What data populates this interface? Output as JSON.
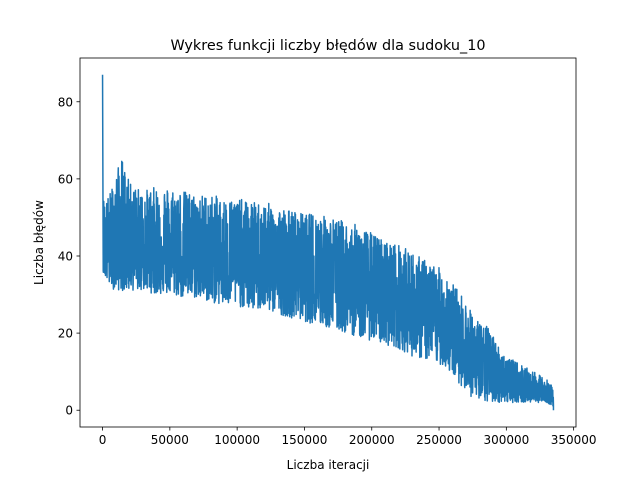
{
  "chart_data": {
    "type": "line",
    "title": "Wykres funkcji liczby błędów dla sudoku_10",
    "xlabel": "Liczba iteracji",
    "ylabel": "Liczba błędów",
    "xlim": [
      -16750,
      351750
    ],
    "ylim": [
      -4.35,
      91.35
    ],
    "xticks": [
      0,
      50000,
      100000,
      150000,
      200000,
      250000,
      300000,
      350000
    ],
    "xtick_labels": [
      "0",
      "50000",
      "100000",
      "150000",
      "200000",
      "250000",
      "300000",
      "350000"
    ],
    "yticks": [
      0,
      20,
      40,
      60,
      80
    ],
    "ytick_labels": [
      "0",
      "20",
      "40",
      "60",
      "80"
    ],
    "grid": false,
    "legend": "none",
    "line_color": "#1f77b4",
    "series": [
      {
        "x": [
          0,
          500,
          1000,
          2000,
          5000,
          10000,
          14000,
          20000,
          30000,
          40000,
          50000,
          60000,
          70000,
          80000,
          90000,
          100000,
          110000,
          120000,
          130000,
          140000,
          150000,
          160000,
          170000,
          180000,
          190000,
          200000,
          210000,
          220000,
          230000,
          240000,
          250000,
          255000,
          260000,
          265000,
          270000,
          275000,
          280000,
          285000,
          290000,
          295000,
          300000,
          310000,
          320000,
          330000,
          335000
        ],
        "upper": [
          87,
          56,
          55,
          54,
          56,
          61,
          66,
          59,
          57,
          58,
          58,
          57,
          56,
          56,
          55,
          55,
          54,
          54,
          53,
          52,
          51,
          51,
          50,
          49,
          48,
          46,
          44,
          43,
          41,
          39,
          37,
          36,
          33,
          31,
          28,
          25,
          23,
          22,
          20,
          16,
          14,
          12,
          10,
          8,
          6
        ],
        "lower": [
          36,
          36,
          35,
          34,
          32,
          31,
          31,
          31,
          31,
          30,
          30,
          29,
          29,
          28,
          27,
          27,
          26,
          26,
          25,
          24,
          23,
          22,
          21,
          20,
          19,
          18,
          17,
          16,
          14,
          13,
          12,
          11,
          9,
          7,
          5,
          3,
          2,
          2,
          2,
          2,
          2,
          2,
          2,
          2,
          1
        ],
        "center": [
          45,
          44,
          44,
          44,
          43,
          43,
          43,
          42,
          42,
          42,
          41,
          41,
          40,
          40,
          39,
          39,
          38,
          38,
          37,
          36,
          36,
          35,
          34,
          33,
          32,
          31,
          30,
          28,
          27,
          25,
          23,
          22,
          20,
          18,
          15,
          13,
          12,
          11,
          10,
          8,
          7,
          6,
          5,
          4,
          2
        ]
      }
    ]
  }
}
